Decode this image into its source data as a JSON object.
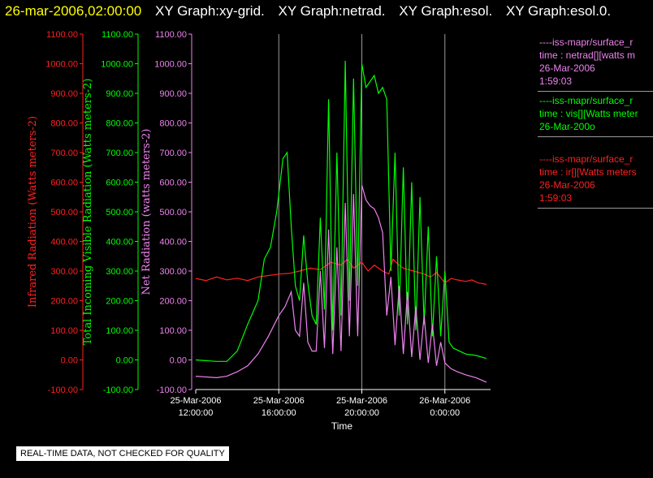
{
  "header": {
    "timestamp": "26-mar-2006,02:00:00",
    "graph_titles": [
      "XY Graph:xy-grid.",
      "XY Graph:netrad.",
      "XY Graph:esol.",
      "XY Graph:esol.0."
    ]
  },
  "quality_note": "REAL-TIME DATA, NOT CHECKED FOR QUALITY",
  "colors": {
    "ir": "#ff2020",
    "vis": "#00ff00",
    "net": "#ee82ee",
    "axis": "#ffffff"
  },
  "legend": [
    {
      "lines": [
        "----iss-mapr/surface_r",
        "time : netrad[][watts m",
        "26-Mar-2006",
        "1:59:03"
      ],
      "color": "#ee82ee"
    },
    {
      "lines": [
        "----iss-mapr/surface_r",
        "time : vis[][Watts meter",
        "26-Mar-200o"
      ],
      "color": "#00ff00"
    },
    {
      "lines": [
        "----iss-mapr/surface_r",
        "time : ir[][Watts meters",
        "26-Mar-2006",
        "1:59:03"
      ],
      "color": "#ff2020"
    }
  ],
  "chart_data": {
    "type": "line",
    "xlabel": "Time",
    "x_ticks": [
      {
        "date": "25-Mar-2006",
        "time": "12:00:00",
        "hour": 12
      },
      {
        "date": "25-Mar-2006",
        "time": "16:00:00",
        "hour": 16
      },
      {
        "date": "25-Mar-2006",
        "time": "20:00:00",
        "hour": 20
      },
      {
        "date": "26-Mar-2006",
        "time": "0:00:00",
        "hour": 24
      }
    ],
    "xlim": [
      12,
      26.2
    ],
    "ylim": [
      -100,
      1100
    ],
    "y_ticks": [
      "1100.00",
      "1000.00",
      "900.00",
      "800.00",
      "700.00",
      "600.00",
      "500.00",
      "400.00",
      "300.00",
      "200.00",
      "100.00",
      "0.00",
      "-100.00"
    ],
    "axes": [
      {
        "label": "Infrared Radiation (Watts meters-2)",
        "color": "#ff2020"
      },
      {
        "label": "Total Incoming Visible Radiation (Watts meters-2)",
        "color": "#00ff00"
      },
      {
        "label": "Net Radiation (watts meters-2)",
        "color": "#ee82ee"
      }
    ],
    "grid_x_at": [
      16,
      20,
      24
    ],
    "series": [
      {
        "name": "ir",
        "color": "#ff2020",
        "points": [
          [
            12,
            275
          ],
          [
            12.5,
            268
          ],
          [
            13,
            280
          ],
          [
            13.5,
            270
          ],
          [
            14,
            276
          ],
          [
            14.5,
            268
          ],
          [
            15,
            280
          ],
          [
            15.5,
            285
          ],
          [
            16,
            290
          ],
          [
            16.5,
            292
          ],
          [
            17,
            300
          ],
          [
            17.5,
            310
          ],
          [
            18,
            305
          ],
          [
            18.5,
            330
          ],
          [
            19,
            320
          ],
          [
            19.3,
            340
          ],
          [
            19.6,
            310
          ],
          [
            20,
            330
          ],
          [
            20.3,
            300
          ],
          [
            20.6,
            320
          ],
          [
            21,
            300
          ],
          [
            21.3,
            290
          ],
          [
            21.5,
            340
          ],
          [
            21.8,
            320
          ],
          [
            22,
            310
          ],
          [
            22.5,
            300
          ],
          [
            23,
            290
          ],
          [
            23.3,
            280
          ],
          [
            23.6,
            295
          ],
          [
            24,
            260
          ],
          [
            24.3,
            275
          ],
          [
            24.6,
            270
          ],
          [
            25,
            265
          ],
          [
            25.3,
            270
          ],
          [
            25.6,
            260
          ],
          [
            26,
            255
          ]
        ]
      },
      {
        "name": "vis",
        "color": "#00ff00",
        "points": [
          [
            12,
            0
          ],
          [
            13,
            -5
          ],
          [
            13.5,
            -5
          ],
          [
            14,
            30
          ],
          [
            14.5,
            120
          ],
          [
            15,
            200
          ],
          [
            15.3,
            340
          ],
          [
            15.6,
            380
          ],
          [
            15.9,
            500
          ],
          [
            16.2,
            680
          ],
          [
            16.4,
            700
          ],
          [
            16.6,
            450
          ],
          [
            16.8,
            250
          ],
          [
            17,
            200
          ],
          [
            17.2,
            420
          ],
          [
            17.4,
            260
          ],
          [
            17.6,
            150
          ],
          [
            17.8,
            120
          ],
          [
            18,
            480
          ],
          [
            18.2,
            170
          ],
          [
            18.4,
            880
          ],
          [
            18.6,
            100
          ],
          [
            18.8,
            700
          ],
          [
            19,
            150
          ],
          [
            19.2,
            1010
          ],
          [
            19.4,
            200
          ],
          [
            19.6,
            950
          ],
          [
            19.8,
            250
          ],
          [
            20,
            1000
          ],
          [
            20.2,
            920
          ],
          [
            20.4,
            940
          ],
          [
            20.6,
            960
          ],
          [
            20.8,
            900
          ],
          [
            21,
            920
          ],
          [
            21.2,
            880
          ],
          [
            21.4,
            300
          ],
          [
            21.6,
            700
          ],
          [
            21.8,
            150
          ],
          [
            22,
            650
          ],
          [
            22.2,
            120
          ],
          [
            22.4,
            600
          ],
          [
            22.6,
            100
          ],
          [
            22.8,
            550
          ],
          [
            23,
            120
          ],
          [
            23.2,
            450
          ],
          [
            23.4,
            80
          ],
          [
            23.6,
            350
          ],
          [
            23.8,
            80
          ],
          [
            24,
            300
          ],
          [
            24.2,
            60
          ],
          [
            24.4,
            40
          ],
          [
            24.7,
            30
          ],
          [
            25,
            20
          ],
          [
            25.5,
            15
          ],
          [
            26,
            5
          ]
        ]
      },
      {
        "name": "net",
        "color": "#ee82ee",
        "points": [
          [
            12,
            -55
          ],
          [
            13,
            -60
          ],
          [
            13.5,
            -55
          ],
          [
            14,
            -40
          ],
          [
            14.5,
            -20
          ],
          [
            15,
            20
          ],
          [
            15.5,
            80
          ],
          [
            16,
            150
          ],
          [
            16.3,
            180
          ],
          [
            16.6,
            230
          ],
          [
            16.8,
            100
          ],
          [
            17,
            80
          ],
          [
            17.2,
            260
          ],
          [
            17.4,
            60
          ],
          [
            17.6,
            30
          ],
          [
            17.8,
            30
          ],
          [
            18,
            300
          ],
          [
            18.2,
            40
          ],
          [
            18.4,
            440
          ],
          [
            18.6,
            20
          ],
          [
            18.8,
            380
          ],
          [
            19,
            30
          ],
          [
            19.2,
            530
          ],
          [
            19.4,
            80
          ],
          [
            19.6,
            560
          ],
          [
            19.8,
            80
          ],
          [
            20,
            590
          ],
          [
            20.2,
            540
          ],
          [
            20.4,
            520
          ],
          [
            20.6,
            510
          ],
          [
            20.8,
            480
          ],
          [
            21,
            430
          ],
          [
            21.2,
            150
          ],
          [
            21.4,
            280
          ],
          [
            21.6,
            50
          ],
          [
            21.8,
            250
          ],
          [
            22,
            20
          ],
          [
            22.2,
            230
          ],
          [
            22.4,
            10
          ],
          [
            22.6,
            180
          ],
          [
            22.8,
            0
          ],
          [
            23,
            150
          ],
          [
            23.2,
            -10
          ],
          [
            23.4,
            120
          ],
          [
            23.6,
            -20
          ],
          [
            23.8,
            60
          ],
          [
            24,
            -10
          ],
          [
            24.3,
            -30
          ],
          [
            24.6,
            -40
          ],
          [
            25,
            -50
          ],
          [
            25.5,
            -60
          ],
          [
            26,
            -75
          ]
        ]
      }
    ]
  }
}
